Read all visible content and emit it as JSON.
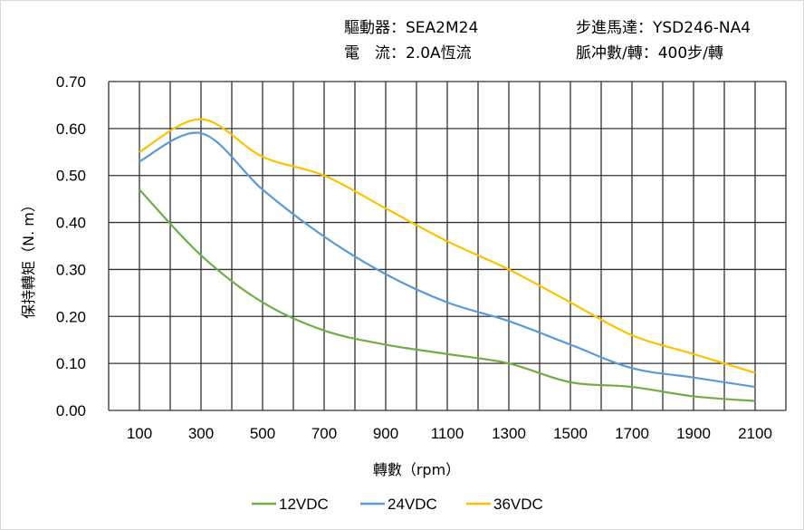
{
  "header": {
    "driver_label": "驅動器：",
    "driver_value": "SEA2M24",
    "current_label": "電　流：",
    "current_value": "2.0A恆流",
    "motor_label": "步進馬達：",
    "motor_value": "YSD246-NA4",
    "pulses_label": "脈冲數/轉：",
    "pulses_value": "400步/轉"
  },
  "chart_data": {
    "type": "line",
    "title": "",
    "xlabel": "轉數（rpm）",
    "ylabel": "保持轉矩（N. m）",
    "x": [
      100,
      300,
      500,
      700,
      900,
      1100,
      1300,
      1500,
      1700,
      1900,
      2100
    ],
    "xlim": [
      0,
      2200
    ],
    "ylim": [
      0,
      0.7
    ],
    "xticks": [
      "100",
      "300",
      "500",
      "700",
      "900",
      "1100",
      "1300",
      "1500",
      "1700",
      "1900",
      "2100"
    ],
    "yticks": [
      "0.00",
      "0.10",
      "0.20",
      "0.30",
      "0.40",
      "0.50",
      "0.60",
      "0.70"
    ],
    "grid": true,
    "legend": "bottom",
    "series": [
      {
        "name": "12VDC",
        "color": "#70ad47",
        "values": [
          0.47,
          0.33,
          0.23,
          0.17,
          0.14,
          0.12,
          0.1,
          0.06,
          0.05,
          0.03,
          0.02
        ]
      },
      {
        "name": "24VDC",
        "color": "#5b9bd5",
        "values": [
          0.53,
          0.59,
          0.47,
          0.37,
          0.29,
          0.23,
          0.19,
          0.14,
          0.09,
          0.07,
          0.05
        ]
      },
      {
        "name": "36VDC",
        "color": "#ffc000",
        "values": [
          0.55,
          0.62,
          0.54,
          0.5,
          0.43,
          0.36,
          0.3,
          0.23,
          0.16,
          0.12,
          0.08
        ]
      }
    ]
  }
}
